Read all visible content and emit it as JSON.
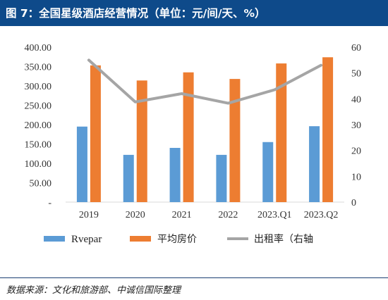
{
  "header": {
    "title": "图 7：全国星级酒店经营情况（单位：元/间/天、%）"
  },
  "footer": {
    "source": "数据来源：文化和旅游部、中诚信国际整理"
  },
  "colors": {
    "title_bg": "#0e4a8a",
    "rvepar": "#5b9bd5",
    "adr": "#ed7d31",
    "occupancy": "#a5a5a5"
  },
  "chart_data": {
    "type": "bar",
    "categories": [
      "2019",
      "2020",
      "2021",
      "2022",
      "2023.Q1",
      "2023.Q2"
    ],
    "series": [
      {
        "name": "Rvepar",
        "kind": "bar",
        "axis": "left",
        "values": [
          195,
          122,
          140,
          122,
          155,
          196
        ]
      },
      {
        "name": "平均房价",
        "kind": "bar",
        "axis": "left",
        "values": [
          353,
          314,
          335,
          318,
          358,
          374
        ]
      },
      {
        "name": "出租率（右轴",
        "kind": "line",
        "axis": "right",
        "values": [
          55,
          38.8,
          42,
          38.3,
          43.5,
          53
        ]
      }
    ],
    "y_left": {
      "ylim": [
        0,
        400
      ],
      "ticks": [
        "-",
        "50.00",
        "100.00",
        "150.00",
        "200.00",
        "250.00",
        "300.00",
        "350.00",
        "400.00"
      ]
    },
    "y_right": {
      "ylim": [
        0,
        60
      ],
      "ticks": [
        "0",
        "10",
        "20",
        "30",
        "40",
        "50",
        "60"
      ]
    },
    "grid": false,
    "legend_position": "bottom"
  }
}
